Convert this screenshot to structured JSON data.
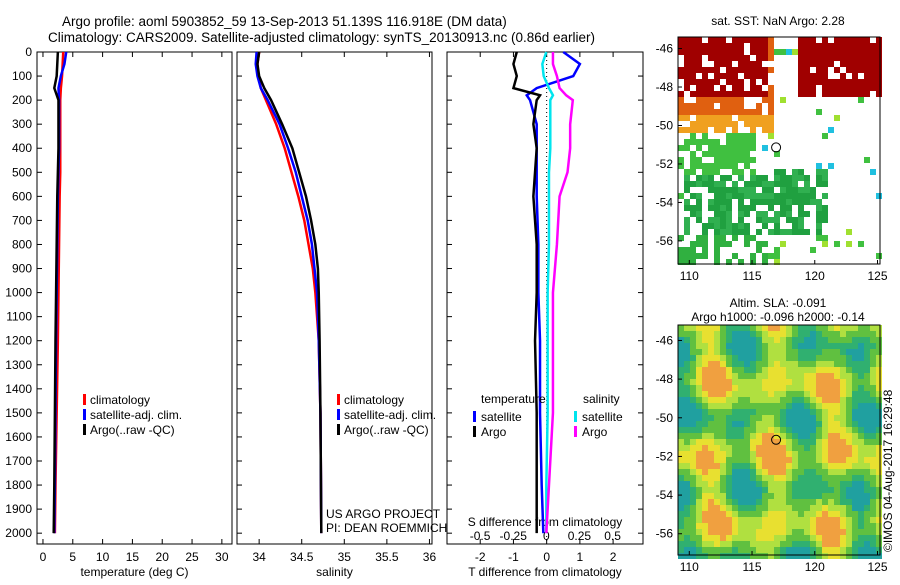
{
  "title_line1": "Argo profile: aoml 5903852_59 13-Sep-2013 51.139S 116.918E (DM data)",
  "title_line2": "Climatology: CARS2009. Satellite-adjusted climatology: synTS_20130913.nc (0.86d earlier)",
  "colors": {
    "climatology": "#ff0000",
    "satellite": "#0000ff",
    "argo": "#000000",
    "sal_satellite": "#00e5ee",
    "sal_argo": "#ff00ff"
  },
  "chart_data": [
    {
      "type": "line",
      "name": "temperature",
      "xlabel": "temperature (deg C)",
      "xlim": [
        -1,
        31.7
      ],
      "ylim": [
        2045,
        0
      ],
      "xticks": [
        0,
        5,
        10,
        15,
        20,
        25,
        30
      ],
      "yticks": [
        0,
        100,
        200,
        300,
        400,
        500,
        600,
        700,
        800,
        900,
        1000,
        1100,
        1200,
        1300,
        1400,
        1500,
        1600,
        1700,
        1800,
        1900,
        2000
      ],
      "legend": [
        "climatology",
        "satellite-adj. clim.",
        "Argo(..raw -QC)"
      ],
      "depth": [
        0,
        50,
        100,
        150,
        200,
        300,
        400,
        500,
        600,
        800,
        1000,
        1200,
        1500,
        1800,
        2000
      ],
      "series": [
        {
          "name": "climatology",
          "values": [
            3.4,
            3.3,
            3.2,
            3.0,
            2.9,
            2.9,
            2.9,
            2.9,
            2.8,
            2.7,
            2.6,
            2.5,
            2.3,
            2.1,
            2.0
          ]
        },
        {
          "name": "satellite",
          "values": [
            3.9,
            3.6,
            3.0,
            2.6,
            2.7,
            2.7,
            2.7,
            2.6,
            2.5,
            2.4,
            2.3,
            2.2,
            2.1,
            2.0,
            1.9
          ]
        },
        {
          "name": "argo",
          "values": [
            2.5,
            2.4,
            2.3,
            1.9,
            2.6,
            2.6,
            2.6,
            2.5,
            2.4,
            2.3,
            2.2,
            2.1,
            2.0,
            1.9,
            1.8
          ]
        }
      ]
    },
    {
      "type": "line",
      "name": "salinity",
      "xlabel": "salinity",
      "xlim": [
        33.74,
        36.03
      ],
      "ylim": [
        2045,
        0
      ],
      "xticks": [
        34,
        34.5,
        35,
        35.5,
        36
      ],
      "legend": [
        "climatology",
        "satellite-adj. clim.",
        "Argo(..raw -QC)"
      ],
      "annotation": [
        "US ARGO PROJECT",
        "PI: DEAN ROEMMICH"
      ],
      "depth": [
        0,
        50,
        100,
        150,
        200,
        300,
        400,
        500,
        600,
        700,
        800,
        900,
        1000,
        1200,
        1500,
        2000
      ],
      "series": [
        {
          "name": "climatology",
          "values": [
            34.0,
            33.98,
            33.99,
            34.02,
            34.08,
            34.2,
            34.3,
            34.38,
            34.46,
            34.53,
            34.58,
            34.63,
            34.66,
            34.7,
            34.72,
            34.73
          ]
        },
        {
          "name": "satellite",
          "values": [
            33.97,
            33.96,
            33.98,
            34.02,
            34.1,
            34.24,
            34.34,
            34.43,
            34.5,
            34.57,
            34.62,
            34.65,
            34.68,
            34.7,
            34.72,
            34.73
          ]
        },
        {
          "name": "argo",
          "values": [
            34.0,
            33.98,
            34.0,
            34.06,
            34.14,
            34.27,
            34.39,
            34.47,
            34.55,
            34.61,
            34.66,
            34.69,
            34.7,
            34.71,
            34.72,
            34.73
          ]
        }
      ]
    },
    {
      "type": "line",
      "name": "difference",
      "xlabel": "T difference from climatology",
      "x2label": "S difference from climatology",
      "xlim": [
        -3,
        2.9
      ],
      "xticks": [
        -2,
        -1,
        0,
        1,
        2
      ],
      "x2lim": [
        -0.75,
        0.73
      ],
      "x2ticks": [
        -0.5,
        -0.25,
        0,
        0.25,
        0.5
      ],
      "legend_titles": [
        "temperature",
        "salinity"
      ],
      "legend": [
        "satellite",
        "Argo",
        "satellite",
        "Argo"
      ],
      "depth": [
        0,
        50,
        100,
        150,
        180,
        200,
        300,
        400,
        500,
        600,
        800,
        1000,
        1200,
        1500,
        1800,
        2000
      ],
      "series": [
        {
          "name": "T satellite",
          "axis": "T",
          "values": [
            0.5,
            1.0,
            0.8,
            -0.3,
            -0.6,
            -0.5,
            -0.3,
            -0.3,
            -0.3,
            -0.3,
            -0.25,
            -0.25,
            -0.2,
            -0.2,
            -0.15,
            -0.1
          ]
        },
        {
          "name": "T argo",
          "axis": "T",
          "values": [
            -0.9,
            -1.0,
            -0.9,
            -1.0,
            -0.2,
            -0.3,
            -0.4,
            -0.3,
            -0.35,
            -0.4,
            -0.3,
            -0.3,
            -0.35,
            -0.3,
            -0.3,
            -0.3
          ]
        },
        {
          "name": "S satellite",
          "axis": "S",
          "values": [
            0,
            -0.03,
            -0.02,
            0.02,
            0.05,
            0.03,
            0.03,
            0.03,
            0.02,
            0.02,
            0.02,
            0.01,
            0.01,
            0.01,
            0.0,
            0.0
          ]
        },
        {
          "name": "S argo",
          "axis": "S",
          "values": [
            0.05,
            0.05,
            0.08,
            0.1,
            0.15,
            0.2,
            0.18,
            0.18,
            0.16,
            0.1,
            0.08,
            0.05,
            0.05,
            0.05,
            0.02,
            0.0
          ]
        }
      ]
    },
    {
      "type": "heatmap",
      "name": "sst-map",
      "title": "sat. SST: NaN Argo: 2.28",
      "xlim": [
        109.1,
        125.2
      ],
      "ylim": [
        -57.2,
        -45.4
      ],
      "xticks": [
        110,
        115,
        120,
        125
      ],
      "yticks": [
        -46,
        -48,
        -50,
        -52,
        -54,
        -56
      ],
      "marker": [
        116.918,
        -51.139
      ]
    },
    {
      "type": "heatmap",
      "name": "sla-map",
      "title": [
        "Altim. SLA: -0.091",
        "Argo h1000: -0.096 h2000: -0.14"
      ],
      "xlim": [
        109.1,
        125.2
      ],
      "ylim": [
        -57.1,
        -45.2
      ],
      "xticks": [
        110,
        115,
        120,
        125
      ],
      "yticks": [
        -46,
        -48,
        -50,
        -52,
        -54,
        -56
      ],
      "marker": [
        116.918,
        -51.139
      ]
    }
  ],
  "credit": "©IMOS 04-Aug-2017 16:29:48"
}
